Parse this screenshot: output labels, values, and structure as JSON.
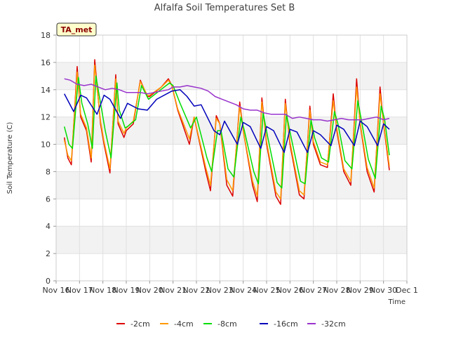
{
  "chart_data": {
    "type": "line",
    "title": "Alfalfa Soil Temperatures Set B",
    "xlabel": "Time",
    "ylabel": "Soil Temperature (C)",
    "badge": "TA_met",
    "xlim": [
      0,
      15
    ],
    "ylim": [
      0,
      18
    ],
    "x_ticks": [
      {
        "value": 0,
        "label": "Nov 16"
      },
      {
        "value": 1,
        "label": "Nov 17"
      },
      {
        "value": 2,
        "label": "Nov 18"
      },
      {
        "value": 3,
        "label": "Nov 19"
      },
      {
        "value": 4,
        "label": "Nov 20"
      },
      {
        "value": 5,
        "label": "Nov 21"
      },
      {
        "value": 6,
        "label": "Nov 22"
      },
      {
        "value": 7,
        "label": "Nov 23"
      },
      {
        "value": 8,
        "label": "Nov 24"
      },
      {
        "value": 9,
        "label": "Nov 25"
      },
      {
        "value": 10,
        "label": "Nov 26"
      },
      {
        "value": 11,
        "label": "Nov 27"
      },
      {
        "value": 12,
        "label": "Nov 28"
      },
      {
        "value": 13,
        "label": "Nov 29"
      },
      {
        "value": 14,
        "label": "Nov 30"
      },
      {
        "value": 15,
        "label": "Dec 1"
      }
    ],
    "y_ticks": [
      0,
      2,
      4,
      6,
      8,
      10,
      12,
      14,
      16,
      18
    ],
    "grid": true,
    "legend_position": "bottom",
    "series": [
      {
        "name": "-2cm",
        "color": "#dd0000",
        "x": [
          0.35,
          0.5,
          0.65,
          0.9,
          1.05,
          1.3,
          1.5,
          1.65,
          1.9,
          2.05,
          2.3,
          2.55,
          2.65,
          2.9,
          3.0,
          3.3,
          3.6,
          3.9,
          4.0,
          4.5,
          4.8,
          4.95,
          5.2,
          5.7,
          5.9,
          6.4,
          6.6,
          6.85,
          7.0,
          7.3,
          7.55,
          7.85,
          8.0,
          8.4,
          8.6,
          8.8,
          9.0,
          9.4,
          9.6,
          9.8,
          10.0,
          10.4,
          10.6,
          10.85,
          11.0,
          11.3,
          11.6,
          11.85,
          12.0,
          12.3,
          12.6,
          12.85,
          13.0,
          13.3,
          13.6,
          13.85,
          14.0,
          14.25
        ],
        "y": [
          10.5,
          9.0,
          8.5,
          15.7,
          12.0,
          11.0,
          8.7,
          16.2,
          11.5,
          10.0,
          7.9,
          15.1,
          11.5,
          10.5,
          11.0,
          11.5,
          14.7,
          13.5,
          13.5,
          14.2,
          14.8,
          14.3,
          12.5,
          10.0,
          12.0,
          8.0,
          6.6,
          12.1,
          11.5,
          7.0,
          6.2,
          13.1,
          11.0,
          7.0,
          5.8,
          13.4,
          10.0,
          6.2,
          5.6,
          13.3,
          10.0,
          6.3,
          6.0,
          12.8,
          10.0,
          8.5,
          8.3,
          13.7,
          11.0,
          8.0,
          7.0,
          14.8,
          11.5,
          8.0,
          6.5,
          14.2,
          11.5,
          8.1
        ]
      },
      {
        "name": "-4cm",
        "color": "#ff9900",
        "x": [
          0.35,
          0.5,
          0.65,
          0.9,
          1.05,
          1.3,
          1.5,
          1.65,
          1.9,
          2.05,
          2.3,
          2.55,
          2.65,
          2.9,
          3.0,
          3.3,
          3.6,
          3.9,
          4.0,
          4.5,
          4.8,
          4.95,
          5.2,
          5.7,
          5.9,
          6.4,
          6.6,
          6.85,
          7.0,
          7.3,
          7.55,
          7.85,
          8.0,
          8.4,
          8.6,
          8.8,
          9.0,
          9.4,
          9.6,
          9.8,
          10.0,
          10.4,
          10.6,
          10.85,
          11.0,
          11.3,
          11.6,
          11.85,
          12.0,
          12.3,
          12.6,
          12.85,
          13.0,
          13.3,
          13.6,
          13.85,
          14.0,
          14.25
        ],
        "y": [
          10.3,
          9.2,
          8.8,
          15.3,
          12.2,
          11.2,
          9.0,
          15.8,
          11.7,
          10.2,
          8.2,
          14.8,
          11.7,
          10.8,
          11.2,
          11.7,
          14.6,
          13.6,
          13.6,
          14.2,
          14.7,
          14.3,
          12.6,
          10.4,
          12.0,
          8.3,
          7.0,
          11.9,
          11.5,
          7.4,
          6.6,
          12.8,
          11.0,
          7.3,
          6.2,
          13.1,
          10.2,
          6.5,
          6.0,
          13.0,
          10.2,
          6.6,
          6.3,
          12.5,
          10.2,
          8.7,
          8.5,
          13.2,
          11.2,
          8.2,
          7.3,
          14.2,
          11.6,
          8.3,
          6.8,
          13.7,
          11.6,
          8.4
        ]
      },
      {
        "name": "-8cm",
        "color": "#00dd00",
        "x": [
          0.35,
          0.55,
          0.7,
          0.95,
          1.1,
          1.35,
          1.55,
          1.7,
          1.95,
          2.1,
          2.35,
          2.6,
          2.7,
          2.95,
          3.05,
          3.4,
          3.65,
          3.95,
          4.1,
          4.55,
          4.85,
          5.0,
          5.3,
          5.75,
          6.0,
          6.45,
          6.65,
          6.9,
          7.05,
          7.35,
          7.6,
          7.9,
          8.05,
          8.45,
          8.65,
          8.85,
          9.05,
          9.45,
          9.65,
          9.85,
          10.05,
          10.45,
          10.65,
          10.9,
          11.05,
          11.35,
          11.65,
          11.9,
          12.05,
          12.35,
          12.65,
          12.9,
          13.05,
          13.35,
          13.65,
          13.9,
          14.05,
          14.25
        ],
        "y": [
          11.3,
          10.0,
          9.7,
          14.9,
          13.0,
          11.5,
          9.7,
          15.0,
          12.5,
          11.0,
          9.0,
          14.5,
          12.5,
          11.2,
          11.3,
          11.8,
          14.3,
          13.3,
          13.5,
          14.1,
          14.5,
          14.3,
          13.0,
          11.2,
          12.0,
          9.0,
          8.0,
          11.0,
          11.0,
          8.2,
          7.6,
          12.0,
          11.0,
          8.0,
          7.1,
          12.3,
          10.5,
          7.2,
          6.8,
          12.2,
          10.5,
          7.3,
          7.1,
          11.8,
          10.5,
          9.0,
          8.7,
          12.4,
          11.5,
          8.8,
          8.2,
          13.2,
          11.8,
          8.9,
          7.5,
          12.8,
          11.8,
          9.2
        ]
      },
      {
        "name": "-16cm",
        "color": "#0000bb",
        "x": [
          0.35,
          0.75,
          1.05,
          1.3,
          1.75,
          2.05,
          2.3,
          2.75,
          3.05,
          3.5,
          3.9,
          4.3,
          4.95,
          5.3,
          5.6,
          5.9,
          6.2,
          6.75,
          7.0,
          7.2,
          7.75,
          8.0,
          8.3,
          8.75,
          9.0,
          9.3,
          9.75,
          10.0,
          10.3,
          10.75,
          11.0,
          11.3,
          11.75,
          12.0,
          12.3,
          12.75,
          13.0,
          13.3,
          13.75,
          14.0,
          14.25
        ],
        "y": [
          13.7,
          12.4,
          13.6,
          13.4,
          12.2,
          13.6,
          13.3,
          11.9,
          13.0,
          12.6,
          12.5,
          13.3,
          13.9,
          14.0,
          13.5,
          12.8,
          12.9,
          11.0,
          10.7,
          11.7,
          10.0,
          11.6,
          11.3,
          9.7,
          11.3,
          11.0,
          9.4,
          11.1,
          10.9,
          9.4,
          11.0,
          10.7,
          9.9,
          11.4,
          11.1,
          9.9,
          11.7,
          11.3,
          9.9,
          11.5,
          11.1
        ]
      },
      {
        "name": "-32cm",
        "color": "#9933cc",
        "x": [
          0.35,
          0.6,
          0.9,
          1.2,
          1.5,
          1.8,
          2.1,
          2.4,
          2.7,
          3.0,
          3.3,
          3.6,
          3.9,
          4.2,
          4.5,
          4.8,
          5.0,
          5.3,
          5.6,
          5.9,
          6.2,
          6.5,
          6.8,
          7.1,
          7.4,
          7.7,
          8.0,
          8.3,
          8.6,
          8.9,
          9.2,
          9.5,
          9.8,
          10.1,
          10.4,
          10.7,
          11.0,
          11.3,
          11.6,
          11.9,
          12.2,
          12.5,
          12.8,
          13.1,
          13.4,
          13.7,
          14.0,
          14.25
        ],
        "y": [
          14.8,
          14.7,
          14.4,
          14.3,
          14.4,
          14.2,
          14.0,
          14.1,
          14.0,
          13.8,
          13.8,
          13.8,
          13.7,
          13.8,
          13.9,
          14.0,
          14.2,
          14.2,
          14.3,
          14.2,
          14.1,
          13.9,
          13.5,
          13.3,
          13.1,
          12.9,
          12.6,
          12.5,
          12.5,
          12.3,
          12.2,
          12.2,
          12.2,
          11.9,
          12.0,
          11.9,
          11.8,
          11.8,
          11.7,
          11.8,
          11.9,
          11.8,
          11.8,
          11.8,
          11.9,
          12.0,
          11.8,
          11.9
        ]
      }
    ]
  }
}
